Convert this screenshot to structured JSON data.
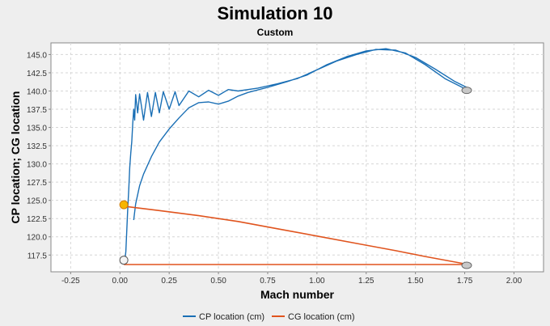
{
  "chart_data": {
    "type": "line",
    "title": "Simulation 10",
    "subtitle": "Custom",
    "xlabel": "Mach number",
    "ylabel": "CP location; CG location",
    "xlim": [
      -0.35,
      2.15
    ],
    "ylim": [
      115.2,
      146.6
    ],
    "xticks": [
      "-0.25",
      "0.00",
      "0.25",
      "0.50",
      "0.75",
      "1.00",
      "1.25",
      "1.50",
      "1.75",
      "2.00"
    ],
    "xtick_values": [
      -0.25,
      0,
      0.25,
      0.5,
      0.75,
      1.0,
      1.25,
      1.5,
      1.75,
      2.0
    ],
    "yticks": [
      "117.5",
      "120.0",
      "122.5",
      "125.0",
      "127.5",
      "130.0",
      "132.5",
      "135.0",
      "137.5",
      "140.0",
      "142.5",
      "145.0"
    ],
    "ytick_values": [
      117.5,
      120,
      122.5,
      125,
      127.5,
      130,
      132.5,
      135,
      137.5,
      140,
      142.5,
      145
    ],
    "grid": true,
    "legend_position": "bottom",
    "series": [
      {
        "name": "CP location (cm)",
        "color": "#1a6fb5",
        "points": [
          [
            0.02,
            116.2
          ],
          [
            0.025,
            116.6
          ],
          [
            0.03,
            118.0
          ],
          [
            0.035,
            121.0
          ],
          [
            0.04,
            124.0
          ],
          [
            0.045,
            126.5
          ],
          [
            0.05,
            129.5
          ],
          [
            0.055,
            131.5
          ],
          [
            0.06,
            133.0
          ],
          [
            0.065,
            135.5
          ],
          [
            0.07,
            137.5
          ],
          [
            0.075,
            136.0
          ],
          [
            0.08,
            139.5
          ],
          [
            0.09,
            137.0
          ],
          [
            0.1,
            139.6
          ],
          [
            0.12,
            136.0
          ],
          [
            0.14,
            139.8
          ],
          [
            0.16,
            136.5
          ],
          [
            0.18,
            139.8
          ],
          [
            0.2,
            137.0
          ],
          [
            0.22,
            139.9
          ],
          [
            0.25,
            137.5
          ],
          [
            0.28,
            139.9
          ],
          [
            0.3,
            138.0
          ],
          [
            0.35,
            140.0
          ],
          [
            0.4,
            139.2
          ],
          [
            0.45,
            140.1
          ],
          [
            0.5,
            139.4
          ],
          [
            0.55,
            140.2
          ],
          [
            0.6,
            140.0
          ],
          [
            0.7,
            140.4
          ],
          [
            0.8,
            141.0
          ],
          [
            0.9,
            141.7
          ],
          [
            1.0,
            142.9
          ],
          [
            1.1,
            144.1
          ],
          [
            1.2,
            145.0
          ],
          [
            1.3,
            145.7
          ],
          [
            1.4,
            145.6
          ],
          [
            1.5,
            144.6
          ],
          [
            1.6,
            143.0
          ],
          [
            1.7,
            141.3
          ],
          [
            1.76,
            140.5
          ],
          [
            1.76,
            140.2
          ],
          [
            1.65,
            141.7
          ],
          [
            1.55,
            143.6
          ],
          [
            1.45,
            145.2
          ],
          [
            1.35,
            145.8
          ],
          [
            1.25,
            145.5
          ],
          [
            1.15,
            144.7
          ],
          [
            1.05,
            143.6
          ],
          [
            0.95,
            142.2
          ],
          [
            0.85,
            141.3
          ],
          [
            0.75,
            140.5
          ],
          [
            0.65,
            139.8
          ],
          [
            0.6,
            139.3
          ],
          [
            0.55,
            138.6
          ],
          [
            0.5,
            138.2
          ],
          [
            0.45,
            138.5
          ],
          [
            0.4,
            138.4
          ],
          [
            0.35,
            137.7
          ],
          [
            0.3,
            136.3
          ],
          [
            0.25,
            134.8
          ],
          [
            0.2,
            133.0
          ],
          [
            0.16,
            131.0
          ],
          [
            0.12,
            128.6
          ],
          [
            0.1,
            127.0
          ],
          [
            0.08,
            124.5
          ],
          [
            0.07,
            122.3
          ]
        ]
      },
      {
        "name": "CG location (cm)",
        "color": "#e0541e",
        "points": [
          [
            0.02,
            124.2
          ],
          [
            0.2,
            123.6
          ],
          [
            0.4,
            122.9
          ],
          [
            0.6,
            122.1
          ],
          [
            0.8,
            121.1
          ],
          [
            1.0,
            120.1
          ],
          [
            1.2,
            119.1
          ],
          [
            1.4,
            118.1
          ],
          [
            1.55,
            117.3
          ],
          [
            1.65,
            116.8
          ],
          [
            1.75,
            116.3
          ],
          [
            1.76,
            116.2
          ],
          [
            0.02,
            116.2
          ]
        ]
      }
    ],
    "markers": [
      {
        "icon": "parachute-icon",
        "x": 1.76,
        "y": 140.2
      },
      {
        "icon": "parachute-icon",
        "x": 1.76,
        "y": 116.2
      },
      {
        "icon": "motor-burnout-icon",
        "x": 0.02,
        "y": 124.4
      },
      {
        "icon": "launch-icon",
        "x": 0.02,
        "y": 116.8
      }
    ]
  }
}
